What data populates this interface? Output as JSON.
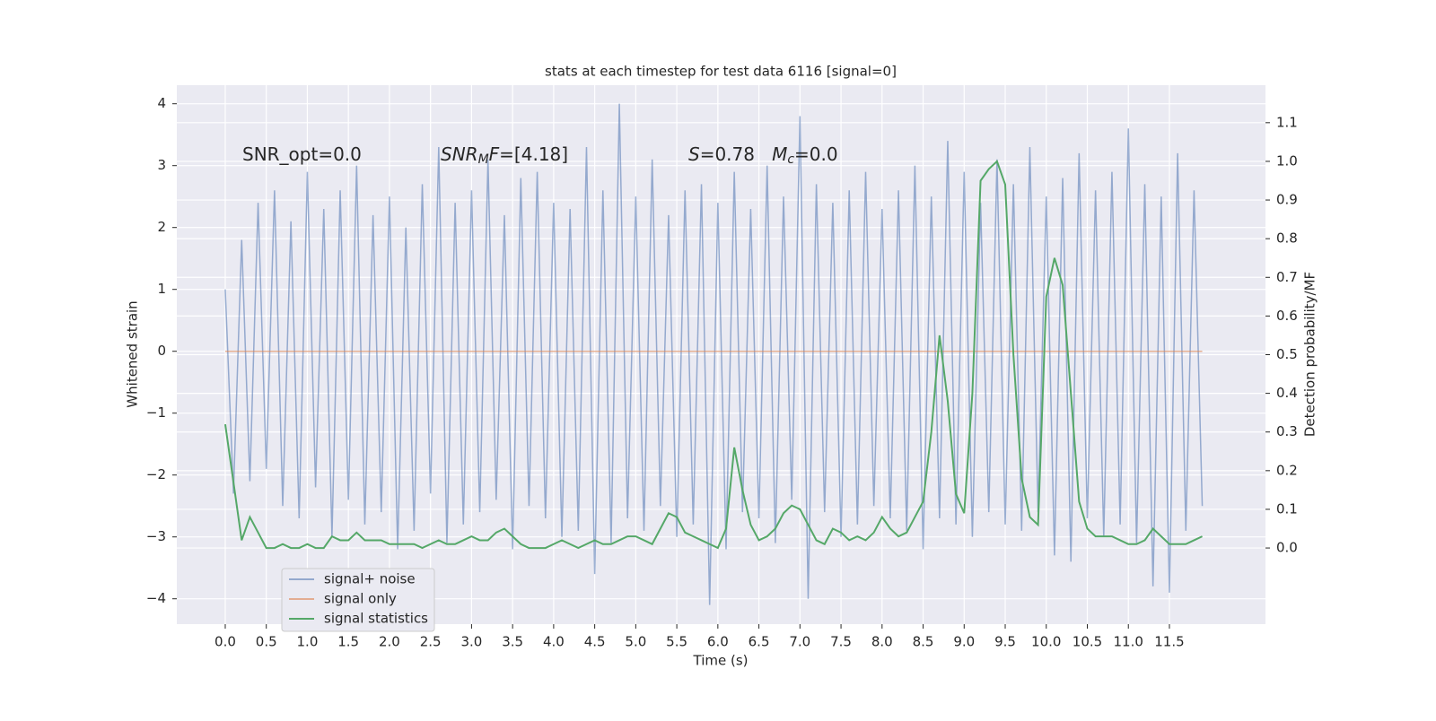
{
  "chart_data": {
    "type": "line",
    "title": "stats at each timestep for test data 6116 [signal=0]",
    "xlabel": "Time (s)",
    "ylabel": "Whitened strain",
    "y2label": "Detection probability/MF",
    "annotations": [
      {
        "parts": [
          {
            "text": "SNR_opt=0.0"
          }
        ]
      },
      {
        "parts": [
          {
            "text": "SNR",
            "style": "italic"
          },
          {
            "text": "M",
            "style": "italic",
            "shift": "sub"
          },
          {
            "text": "F",
            "style": "italic"
          },
          {
            "text": "=[4.18]"
          }
        ]
      },
      {
        "parts": [
          {
            "text": "S",
            "style": "italic"
          },
          {
            "text": "=0.78   "
          },
          {
            "text": "M",
            "style": "italic"
          },
          {
            "text": "c",
            "style": "italic",
            "shift": "sub"
          },
          {
            "text": "=0.0"
          }
        ]
      }
    ],
    "x": [
      0,
      0.1,
      0.2,
      0.3,
      0.4,
      0.5,
      0.6,
      0.7,
      0.8,
      0.9,
      1,
      1.1,
      1.2,
      1.3,
      1.4,
      1.5,
      1.6,
      1.7,
      1.8,
      1.9,
      2,
      2.1,
      2.2,
      2.3,
      2.4,
      2.5,
      2.6,
      2.7,
      2.8,
      2.9,
      3,
      3.1,
      3.2,
      3.3,
      3.4,
      3.5,
      3.6,
      3.7,
      3.8,
      3.9,
      4,
      4.1,
      4.2,
      4.3,
      4.4,
      4.5,
      4.6,
      4.7,
      4.8,
      4.9,
      5,
      5.1,
      5.2,
      5.3,
      5.4,
      5.5,
      5.6,
      5.7,
      5.8,
      5.9,
      6,
      6.1,
      6.2,
      6.3,
      6.4,
      6.5,
      6.6,
      6.7,
      6.8,
      6.9,
      7,
      7.1,
      7.2,
      7.3,
      7.4,
      7.5,
      7.6,
      7.7,
      7.8,
      7.9,
      8,
      8.1,
      8.2,
      8.3,
      8.4,
      8.5,
      8.6,
      8.7,
      8.8,
      8.9,
      9,
      9.1,
      9.2,
      9.3,
      9.4,
      9.5,
      9.6,
      9.7,
      9.8,
      9.9,
      10,
      10.1,
      10.2,
      10.3,
      10.4,
      10.5,
      10.6,
      10.7,
      10.8,
      10.9,
      11,
      11.1,
      11.2,
      11.3,
      11.4,
      11.5,
      11.6,
      11.7,
      11.8,
      11.9
    ],
    "series": [
      {
        "name": "signal+ noise",
        "color": "#4c72b0",
        "alpha": 0.55,
        "axis": "y",
        "values": [
          1.0,
          -2.3,
          1.8,
          -2.1,
          2.4,
          -1.9,
          2.6,
          -2.5,
          2.1,
          -2.7,
          2.9,
          -2.2,
          2.3,
          -3.0,
          2.6,
          -2.4,
          3.0,
          -2.8,
          2.2,
          -2.6,
          2.5,
          -3.2,
          2.0,
          -2.9,
          2.7,
          -2.3,
          3.3,
          -3.1,
          2.4,
          -2.8,
          2.6,
          -2.6,
          3.1,
          -2.4,
          2.2,
          -3.2,
          2.8,
          -2.5,
          2.9,
          -2.7,
          2.4,
          -3.0,
          2.3,
          -2.9,
          3.3,
          -3.6,
          2.6,
          -3.1,
          4.0,
          -2.7,
          2.5,
          -2.9,
          3.1,
          -2.5,
          2.2,
          -3.0,
          2.6,
          -2.8,
          2.7,
          -4.1,
          2.4,
          -3.2,
          2.9,
          -2.6,
          2.3,
          -2.7,
          3.0,
          -3.1,
          2.5,
          -2.4,
          3.8,
          -4.0,
          2.7,
          -2.6,
          2.4,
          -3.0,
          2.6,
          -2.8,
          2.9,
          -2.5,
          2.3,
          -2.7,
          2.6,
          -2.9,
          3.0,
          -3.2,
          2.5,
          -2.7,
          3.4,
          -2.8,
          2.9,
          -3.0,
          2.4,
          -2.6,
          3.1,
          -2.8,
          2.7,
          -2.9,
          3.3,
          -2.6,
          2.5,
          -3.3,
          2.8,
          -3.4,
          3.2,
          -2.7,
          2.6,
          -3.0,
          2.9,
          -2.8,
          3.6,
          -3.1,
          2.7,
          -3.8,
          2.5,
          -3.9,
          3.2,
          -2.9,
          2.6,
          -2.5
        ]
      },
      {
        "name": "signal only",
        "color": "#dd8452",
        "alpha": 0.6,
        "axis": "y",
        "values": [
          0,
          0,
          0,
          0,
          0,
          0,
          0,
          0,
          0,
          0,
          0,
          0,
          0,
          0,
          0,
          0,
          0,
          0,
          0,
          0,
          0,
          0,
          0,
          0,
          0,
          0,
          0,
          0,
          0,
          0,
          0,
          0,
          0,
          0,
          0,
          0,
          0,
          0,
          0,
          0,
          0,
          0,
          0,
          0,
          0,
          0,
          0,
          0,
          0,
          0,
          0,
          0,
          0,
          0,
          0,
          0,
          0,
          0,
          0,
          0,
          0,
          0,
          0,
          0,
          0,
          0,
          0,
          0,
          0,
          0,
          0,
          0,
          0,
          0,
          0,
          0,
          0,
          0,
          0,
          0,
          0,
          0,
          0,
          0,
          0,
          0,
          0,
          0,
          0,
          0,
          0,
          0,
          0,
          0,
          0,
          0,
          0,
          0,
          0,
          0,
          0,
          0,
          0,
          0,
          0,
          0,
          0,
          0,
          0,
          0,
          0,
          0,
          0,
          0,
          0,
          0,
          0,
          0,
          0,
          0
        ]
      },
      {
        "name": "signal statistics",
        "color": "#55a868",
        "alpha": 1,
        "axis": "y2",
        "values": [
          0.32,
          0.17,
          0.02,
          0.08,
          0.04,
          0.0,
          0.0,
          0.01,
          0.0,
          0.0,
          0.01,
          0.0,
          0.0,
          0.03,
          0.02,
          0.02,
          0.04,
          0.02,
          0.02,
          0.02,
          0.01,
          0.01,
          0.01,
          0.01,
          0.0,
          0.01,
          0.02,
          0.01,
          0.01,
          0.02,
          0.03,
          0.02,
          0.02,
          0.04,
          0.05,
          0.03,
          0.01,
          0.0,
          0.0,
          0.0,
          0.01,
          0.02,
          0.01,
          0.0,
          0.01,
          0.02,
          0.01,
          0.01,
          0.02,
          0.03,
          0.03,
          0.02,
          0.01,
          0.05,
          0.09,
          0.08,
          0.04,
          0.03,
          0.02,
          0.01,
          0.0,
          0.05,
          0.26,
          0.15,
          0.06,
          0.02,
          0.03,
          0.05,
          0.09,
          0.11,
          0.1,
          0.06,
          0.02,
          0.01,
          0.05,
          0.04,
          0.02,
          0.03,
          0.02,
          0.04,
          0.08,
          0.05,
          0.03,
          0.04,
          0.08,
          0.12,
          0.3,
          0.55,
          0.38,
          0.14,
          0.09,
          0.4,
          0.95,
          0.98,
          1.0,
          0.94,
          0.5,
          0.18,
          0.08,
          0.06,
          0.65,
          0.75,
          0.68,
          0.4,
          0.12,
          0.05,
          0.03,
          0.03,
          0.03,
          0.02,
          0.01,
          0.01,
          0.02,
          0.05,
          0.03,
          0.01,
          0.01,
          0.01,
          0.02,
          0.03
        ]
      }
    ],
    "xlim": [
      -0.59,
      12.67
    ],
    "xticks": [
      {
        "value": 0,
        "label": "0.0"
      },
      0.5,
      {
        "value": 1,
        "label": "1.0"
      },
      1.5,
      {
        "value": 2,
        "label": "2.0"
      },
      2.5,
      {
        "value": 3,
        "label": "3.0"
      },
      3.5,
      {
        "value": 4,
        "label": "4.0"
      },
      4.5,
      {
        "value": 5,
        "label": "5.0"
      },
      5.5,
      {
        "value": 6,
        "label": "6.0"
      },
      6.5,
      {
        "value": 7,
        "label": "7.0"
      },
      7.5,
      {
        "value": 8,
        "label": "8.0"
      },
      8.5,
      {
        "value": 9,
        "label": "9.0"
      },
      9.5,
      {
        "value": 10,
        "label": "10.0"
      },
      10.5,
      {
        "value": 11,
        "label": "11.0"
      },
      11.5
    ],
    "ylim": [
      -4.41,
      4.3
    ],
    "yticks": [
      {
        "value": -4,
        "label": "−4"
      },
      {
        "value": -3,
        "label": "−3"
      },
      {
        "value": -2,
        "label": "−2"
      },
      {
        "value": -1,
        "label": "−1"
      },
      0,
      1,
      2,
      3,
      4
    ],
    "y2lim": [
      -0.197,
      1.197
    ],
    "y2ticks": [
      {
        "value": 0,
        "label": "0.0"
      },
      0.1,
      0.2,
      0.3,
      0.4,
      0.5,
      0.6,
      0.7,
      0.8,
      0.9,
      {
        "value": 1,
        "label": "1.0"
      },
      1.1
    ],
    "grid": true,
    "legend": "lower left"
  }
}
